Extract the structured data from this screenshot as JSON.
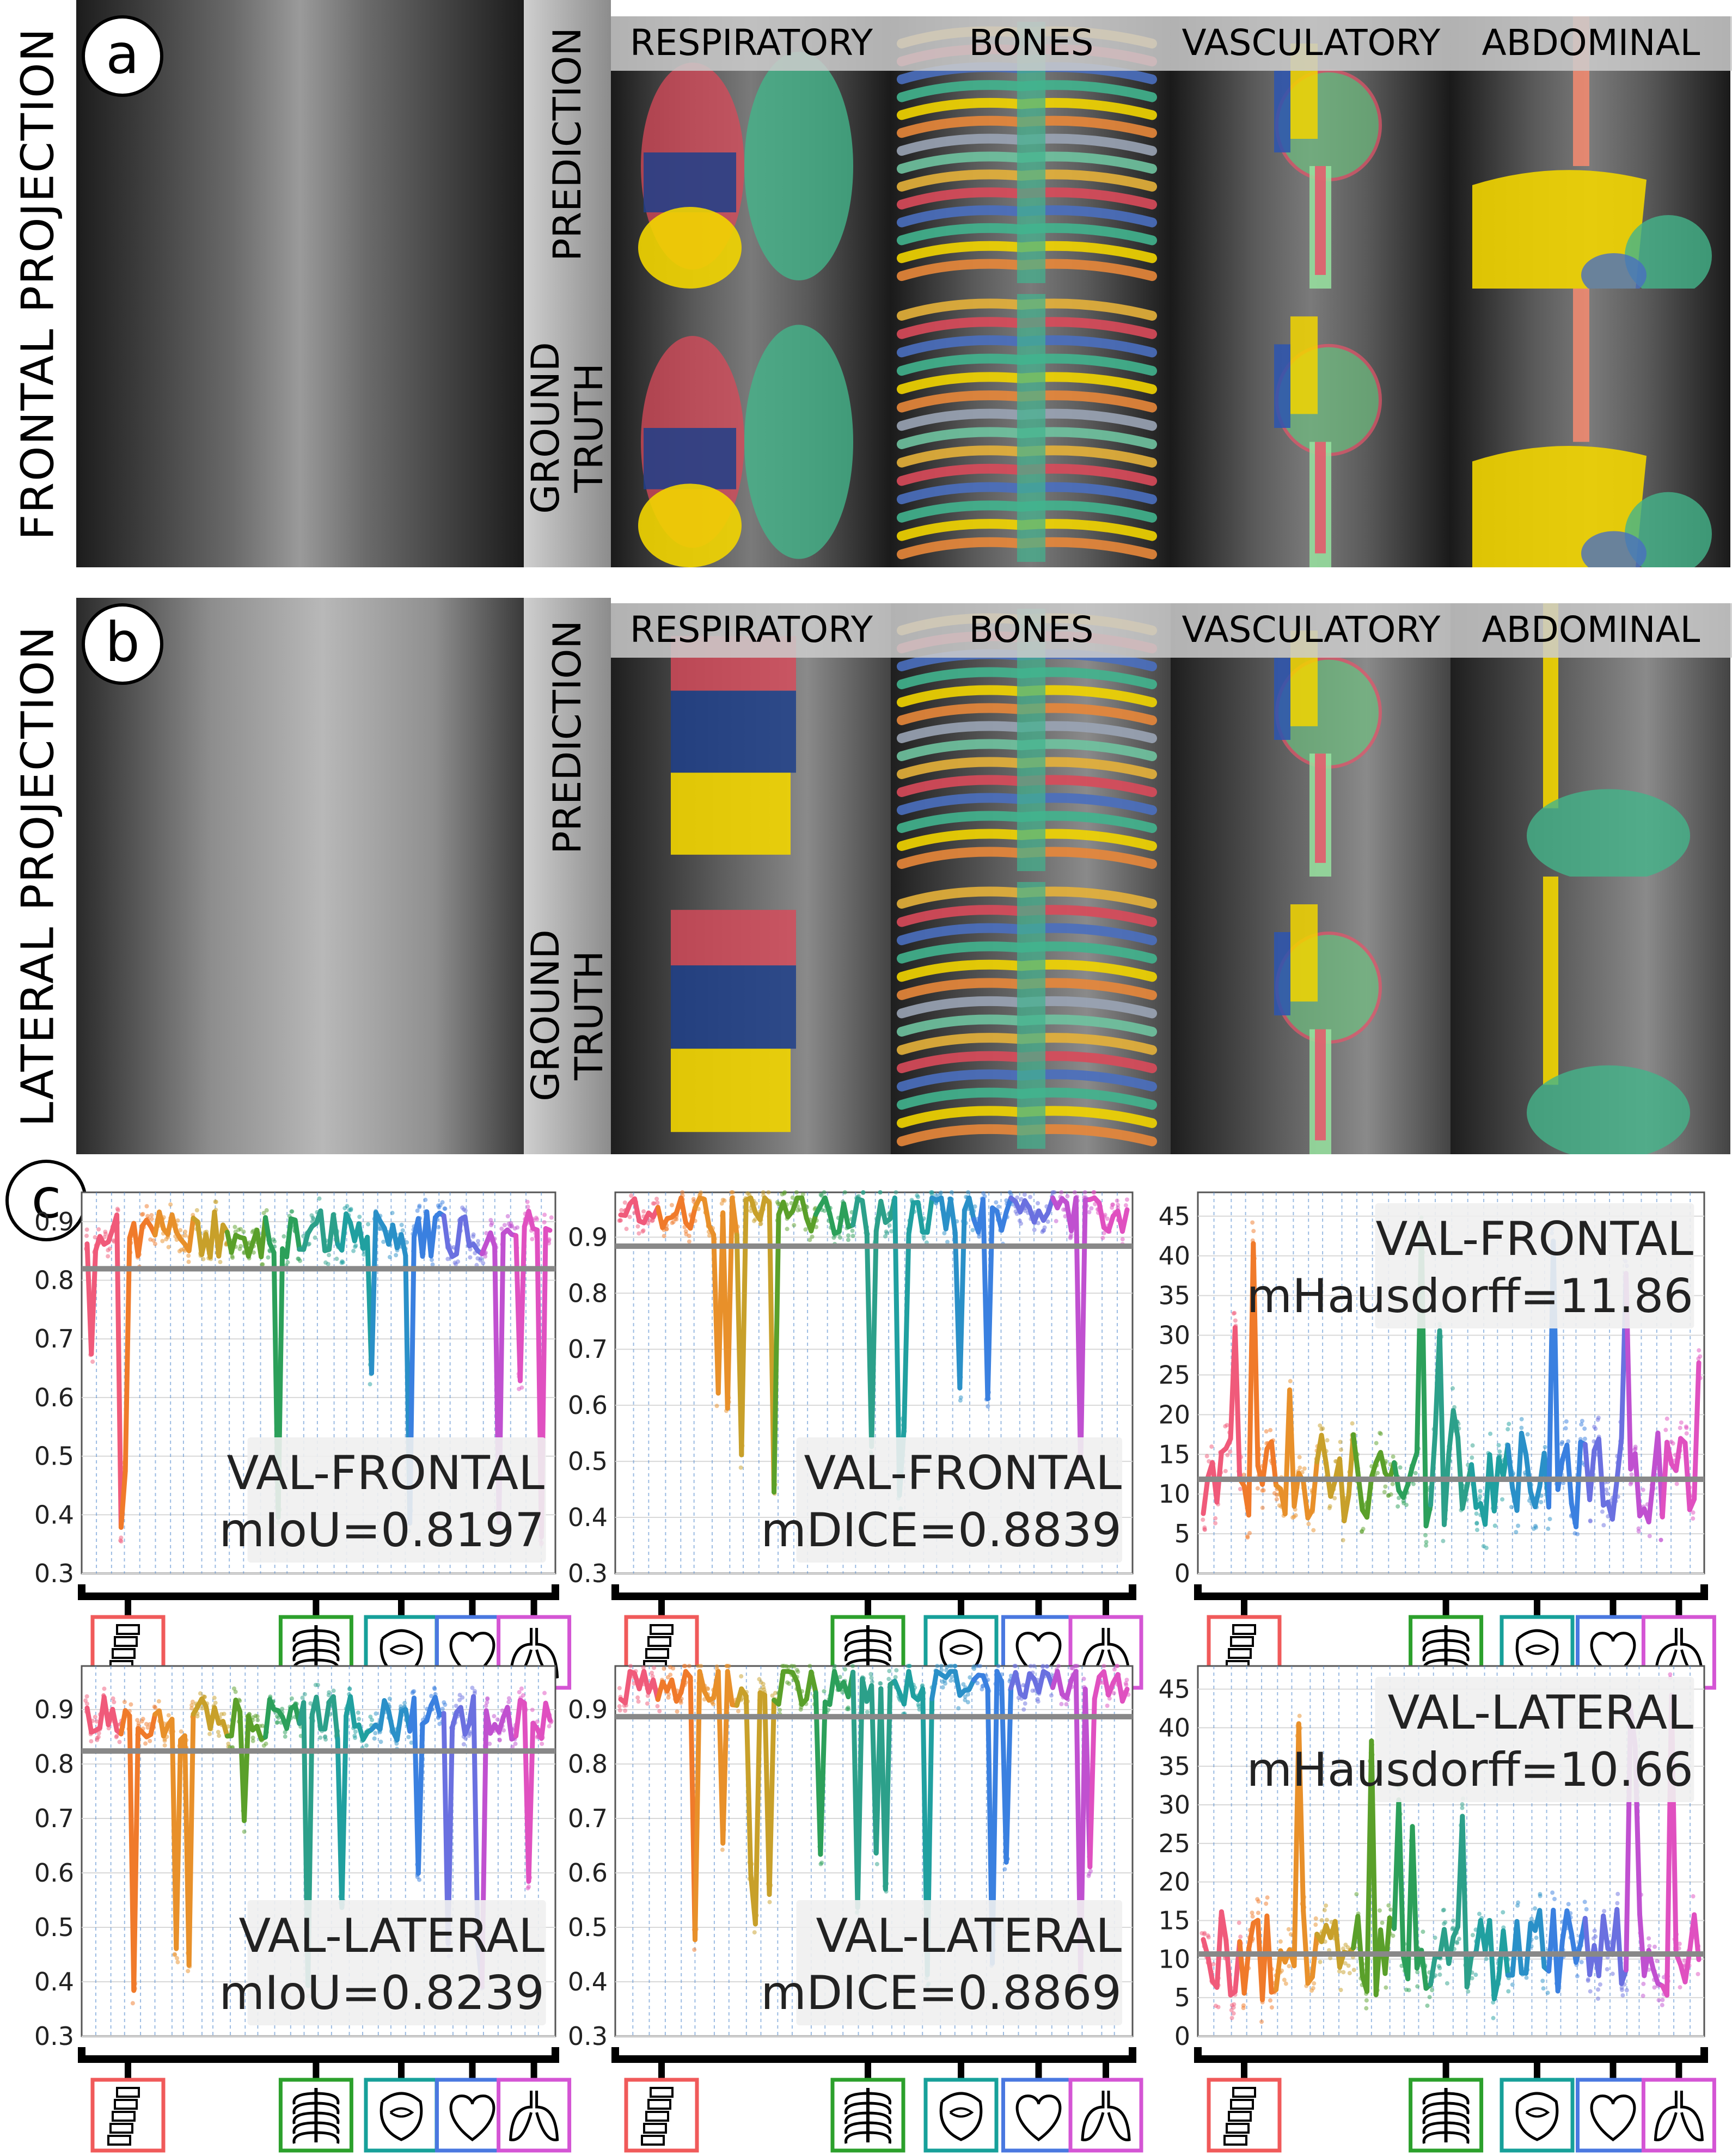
{
  "panel_labels": {
    "a": "a",
    "b": "b",
    "c": "c"
  },
  "frontal_title": "FRONTAL PROJECTION",
  "lateral_title": "LATERAL PROJECTION",
  "columns": [
    "RESPIRATORY",
    "BONES",
    "VASCULATORY",
    "ABDOMINAL"
  ],
  "rows": {
    "prediction": "PREDICTION",
    "ground_truth": "GROUND\nTRUTH"
  },
  "icons": {
    "spine": "vertebrae-icon",
    "ribs": "ribcage-icon",
    "abdomen": "intestines-icon",
    "heart": "heart-icon",
    "lungs": "lungs-icon"
  },
  "group_colors": {
    "spine": "#f05a5a",
    "ribs": "#2ca02c",
    "abdomen": "#17a09a",
    "heart": "#4a78e0",
    "lungs": "#d455d4"
  },
  "chart_data": [
    {
      "type": "scatter",
      "title": "VAL-FRONTAL",
      "metric_label": "mIoU=0.8197",
      "ylim": [
        0.3,
        0.95
      ],
      "yticks": [
        "0.9",
        "0.8",
        "0.7",
        "0.6",
        "0.5",
        "0.4",
        "0.3"
      ],
      "mean": 0.8197,
      "grid": true
    },
    {
      "type": "scatter",
      "title": "VAL-FRONTAL",
      "metric_label": "mDICE=0.8839",
      "ylim": [
        0.3,
        0.98
      ],
      "yticks": [
        "0.9",
        "0.8",
        "0.7",
        "0.6",
        "0.5",
        "0.4",
        "0.3"
      ],
      "mean": 0.8839,
      "grid": true
    },
    {
      "type": "scatter",
      "title": "VAL-FRONTAL",
      "metric_label": "mHausdorff=11.86",
      "ylim": [
        0,
        48
      ],
      "yticks": [
        "45",
        "40",
        "35",
        "30",
        "25",
        "20",
        "15",
        "10",
        "5",
        "0"
      ],
      "mean": 11.86,
      "grid": true
    },
    {
      "type": "scatter",
      "title": "VAL-LATERAL",
      "metric_label": "mIoU=0.8239",
      "ylim": [
        0.3,
        0.98
      ],
      "yticks": [
        "0.9",
        "0.8",
        "0.7",
        "0.6",
        "0.5",
        "0.4",
        "0.3"
      ],
      "mean": 0.8239,
      "grid": true
    },
    {
      "type": "scatter",
      "title": "VAL-LATERAL",
      "metric_label": "mDICE=0.8869",
      "ylim": [
        0.3,
        0.98
      ],
      "yticks": [
        "0.9",
        "0.8",
        "0.7",
        "0.6",
        "0.5",
        "0.4",
        "0.3"
      ],
      "mean": 0.8869,
      "grid": true
    },
    {
      "type": "scatter",
      "title": "VAL-LATERAL",
      "metric_label": "mHausdorff=10.66",
      "ylim": [
        0,
        48
      ],
      "yticks": [
        "45",
        "40",
        "35",
        "30",
        "25",
        "20",
        "15",
        "10",
        "5",
        "0"
      ],
      "mean": 10.66,
      "grid": true
    }
  ]
}
